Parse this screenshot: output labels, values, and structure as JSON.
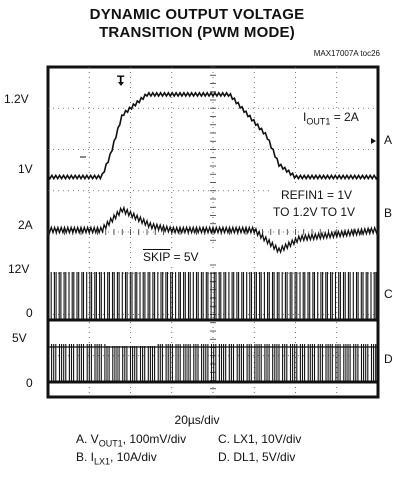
{
  "chart_data": {
    "type": "line",
    "title": "DYNAMIC OUTPUT VOLTAGE",
    "subtitle": "TRANSITION (PWM MODE)",
    "code": "MAX17007A toc26",
    "xlabel": "20µs/div",
    "grid": true,
    "y_tick_labels": [
      "1.2V",
      "1V",
      "2A",
      "12V",
      "0",
      "5V",
      "0"
    ],
    "channel_markers": [
      "A",
      "B",
      "C",
      "D"
    ],
    "annotations": {
      "iout": "I",
      "iout_sub": "OUT1",
      "iout_val": " = 2A",
      "refin_1": "REFIN1 = 1V",
      "refin_2": "TO 1.2V TO 1V",
      "skip": "SKIP",
      "skip_val": " = 5V"
    },
    "legend": [
      {
        "pre": "A. V",
        "sub": "OUT1",
        "post": ", 100mV/div"
      },
      {
        "pre": "B. I",
        "sub": "LX1",
        "post": ", 10A/div"
      },
      {
        "pre": "C. LX1, 10V/div",
        "sub": "",
        "post": ""
      },
      {
        "pre": "D. DL1, 5V/div",
        "sub": "",
        "post": ""
      }
    ],
    "series": [
      {
        "name": "A",
        "x": [
          0,
          1.3,
          1.5,
          1.8,
          2.4,
          4.4,
          5.3,
          5.6,
          6.0,
          8.0
        ],
        "y": [
          1.0,
          1.0,
          1.05,
          1.15,
          1.2,
          1.2,
          1.1,
          1.03,
          1.0,
          1.0
        ]
      },
      {
        "name": "B",
        "x": [
          0,
          1.3,
          1.8,
          2.5,
          3.0,
          5.0,
          5.6,
          6.1,
          8.0
        ],
        "y": [
          2,
          2,
          7,
          3,
          2,
          2,
          -3,
          0,
          2
        ]
      }
    ]
  }
}
